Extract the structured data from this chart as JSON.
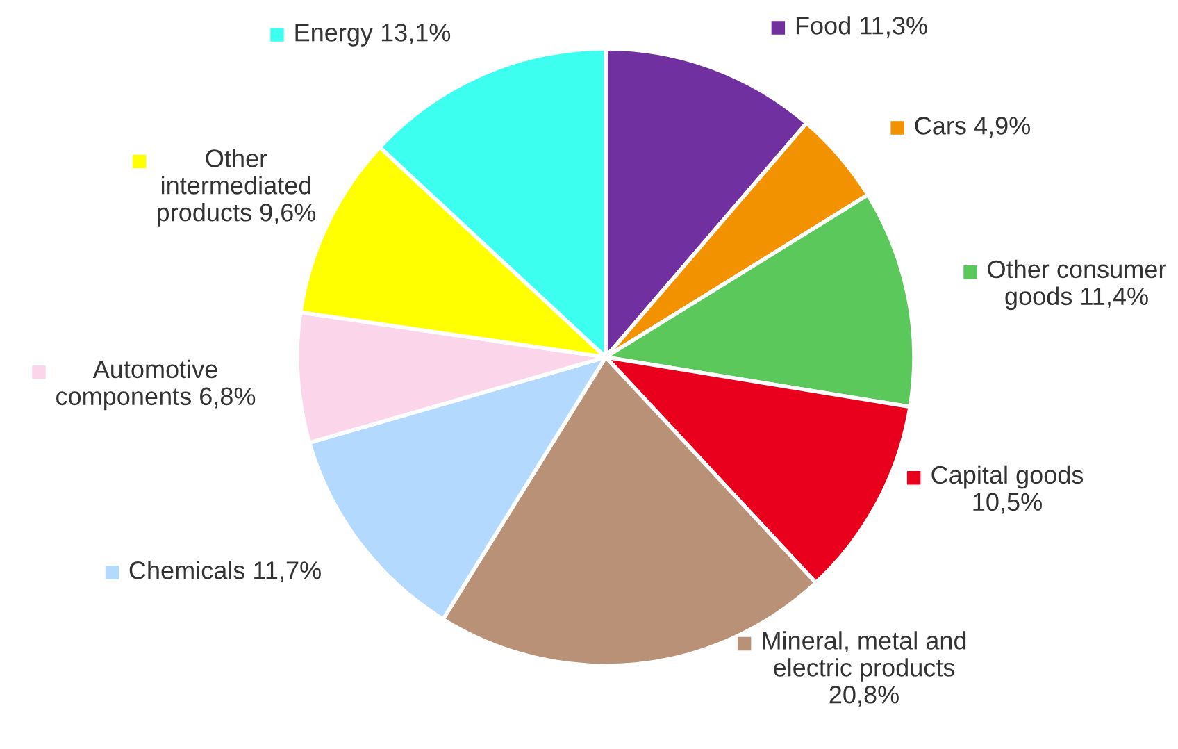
{
  "chart_data": {
    "type": "pie",
    "categories": [
      "Food",
      "Cars",
      "Other consumer\ngoods",
      "Capital goods\n",
      "Mineral, metal and\nelectric products\n",
      "Chemicals",
      "Automotive\ncomponents",
      "Other\nintermediated\nproducts",
      "Energy"
    ],
    "values": [
      11.3,
      4.9,
      11.4,
      10.5,
      20.8,
      11.7,
      6.8,
      9.6,
      13.1
    ],
    "value_labels": [
      "11,3%",
      "4,9%",
      "11,4%",
      "10,5%",
      "20,8%",
      "11,7%",
      "6,8%",
      "9,6%",
      "13,1%"
    ],
    "colors": [
      "#7030a0",
      "#f39200",
      "#5ac85a",
      "#e8001c",
      "#b89176",
      "#b3d9ff",
      "#fbd5ea",
      "#ffff00",
      "#3dfff0"
    ],
    "legend": "top left"
  }
}
